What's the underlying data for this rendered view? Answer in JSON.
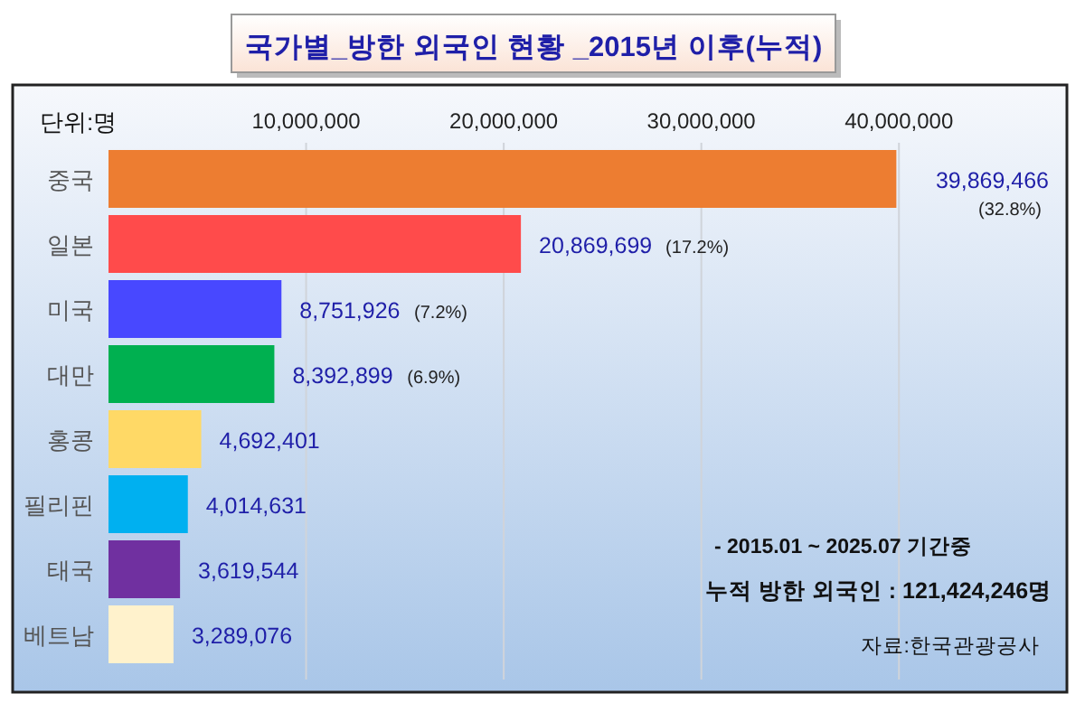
{
  "chart_data": {
    "type": "bar",
    "orientation": "horizontal",
    "title": "국가별_방한 외국인 현황 _2015년 이후(누적)",
    "xlabel": "단위:명",
    "categories": [
      "중국",
      "일본",
      "미국",
      "대만",
      "홍콩",
      "필리핀",
      "태국",
      "베트남"
    ],
    "values": [
      39869466,
      20869699,
      8751926,
      8392899,
      4692401,
      4014631,
      3619544,
      3289076
    ],
    "colors": [
      "#ed7d31",
      "#ff4b4b",
      "#4848ff",
      "#00b050",
      "#ffd966",
      "#00b0f0",
      "#7030a0",
      "#fff2cc"
    ],
    "value_labels": [
      "39,869,466 (32.8%)",
      "20,869,699 (17.2%)",
      "8,751,926 (7.2%)",
      "8,392,899 (6.9%)",
      "4,692,401",
      "4,014,631",
      "3,619,544",
      "3,289,076"
    ],
    "xlim": [
      0,
      48500000
    ],
    "xticks": [
      {
        "value": 10000000,
        "label": "10,000,000"
      },
      {
        "value": 20000000,
        "label": "20,000,000"
      },
      {
        "value": 30000000,
        "label": "30,000,000"
      },
      {
        "value": 40000000,
        "label": "40,000,000"
      }
    ],
    "grid": "x",
    "annotations": [
      "- 2015.01 ~ 2025.07 기간중",
      "누적 방한 외국인  : 121,424,246명",
      "자료:한국관광공사"
    ]
  }
}
